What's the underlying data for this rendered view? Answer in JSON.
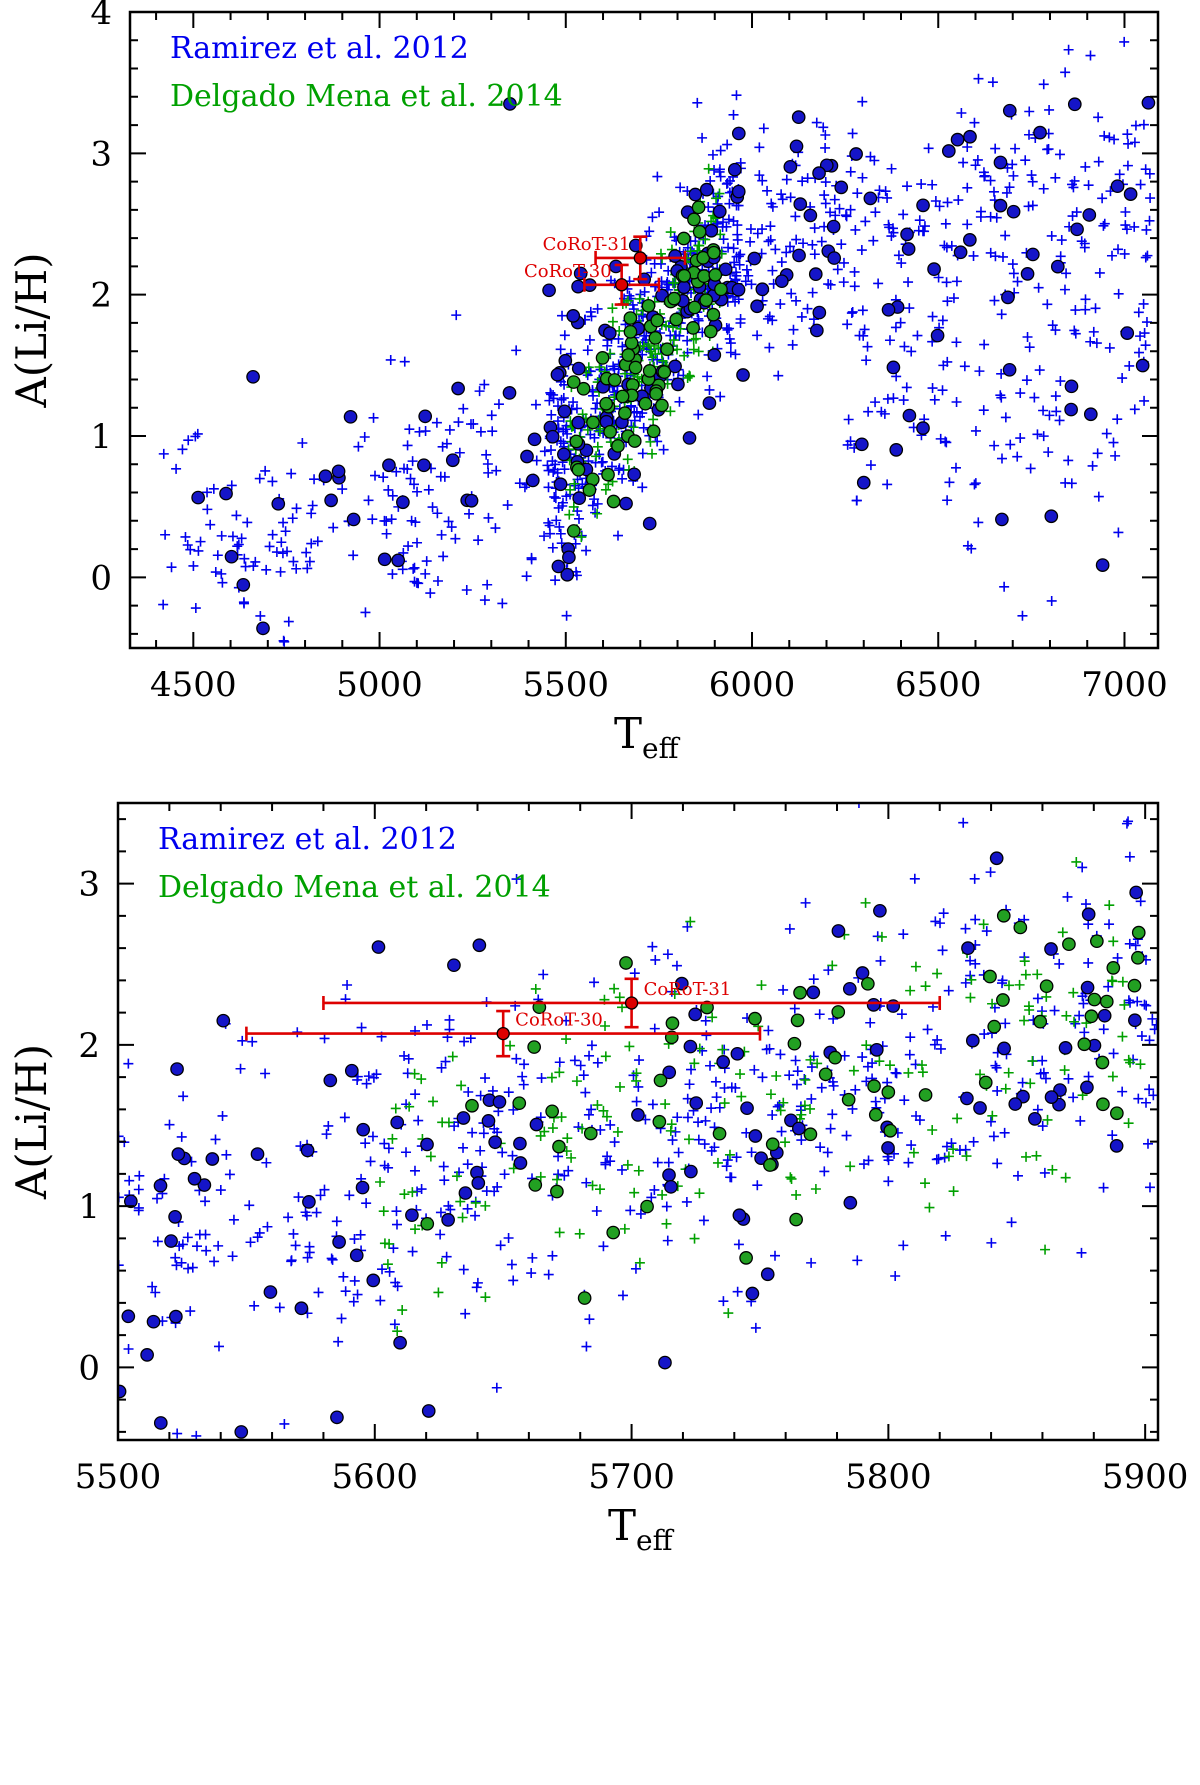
{
  "colors": {
    "ramirez": "#0000ee",
    "ramirez_fill": "#1515c8",
    "delgado": "#00a000",
    "delgado_fill": "#22a022",
    "corot": "#dd0000",
    "axes": "#000000"
  },
  "chart_data": [
    {
      "id": "top",
      "type": "scatter",
      "title": "",
      "xlabel": "T",
      "xlabel_sub": "eff",
      "ylabel": "A(Li/H)",
      "xlim": [
        4330,
        7090
      ],
      "ylim": [
        -0.5,
        4.0
      ],
      "xticks": [
        4500,
        5000,
        5500,
        6000,
        6500,
        7000
      ],
      "xtick_labels": [
        "4500",
        "5000",
        "5500",
        "6000",
        "6500",
        "7000"
      ],
      "yticks": [
        0,
        1,
        2,
        3,
        4
      ],
      "ytick_labels": [
        "0",
        "1",
        "2",
        "3",
        "4"
      ],
      "xminor": 100,
      "yminor": 0.2,
      "legend": [
        "Ramirez et al. 2012",
        "Delgado Mena et al. 2014"
      ],
      "legend_position": "top-left",
      "seed": 12345,
      "n_ramirez_plus": 1050,
      "n_ramirez_circle": 170,
      "n_delgado_plus": 190,
      "n_delgado_circle": 70,
      "highlight": [
        {
          "name": "CoRoT-31",
          "teff": 5700,
          "teff_err": 120,
          "ali": 2.26,
          "ali_err": 0.15,
          "label_side": "left"
        },
        {
          "name": "CoRoT-30",
          "teff": 5650,
          "teff_err": 100,
          "ali": 2.07,
          "ali_err": 0.14,
          "label_side": "left"
        }
      ],
      "ramirez_circle_anchors": [
        {
          "teff": 5350,
          "ali": 3.35
        },
        {
          "teff": 4890,
          "ali": 0.75
        },
        {
          "teff": 5540,
          "ali": 2.15
        },
        {
          "teff": 5520,
          "ali": 1.85
        },
        {
          "teff": 6300,
          "ali": 0.67
        },
        {
          "teff": 6560,
          "ali": 2.3
        },
        {
          "teff": 6180,
          "ali": 2.86
        },
        {
          "teff": 5050,
          "ali": 0.12
        }
      ]
    },
    {
      "id": "bottom",
      "type": "scatter",
      "title": "",
      "xlabel": "T",
      "xlabel_sub": "eff",
      "ylabel": "A(Li/H)",
      "xlim": [
        5500,
        5905
      ],
      "ylim": [
        -0.45,
        3.5
      ],
      "xticks": [
        5500,
        5600,
        5700,
        5800,
        5900
      ],
      "xtick_labels": [
        "5500",
        "5600",
        "5700",
        "5800",
        "5900"
      ],
      "yticks": [
        0,
        1,
        2,
        3
      ],
      "ytick_labels": [
        "0",
        "1",
        "2",
        "3"
      ],
      "xminor": 20,
      "yminor": 0.2,
      "legend": [
        "Ramirez et al. 2012",
        "Delgado Mena et al. 2014"
      ],
      "legend_position": "top-left",
      "seed": 67890,
      "n_ramirez_plus": 560,
      "n_ramirez_circle": 100,
      "n_delgado_plus": 190,
      "n_delgado_circle": 60,
      "highlight": [
        {
          "name": "CoRoT-31",
          "teff": 5700,
          "teff_err": 120,
          "ali": 2.26,
          "ali_err": 0.15,
          "label_side": "right"
        },
        {
          "name": "CoRoT-30",
          "teff": 5650,
          "teff_err": 100,
          "ali": 2.07,
          "ali_err": 0.14,
          "label_side": "right"
        }
      ],
      "ramirez_circle_anchors": [
        {
          "teff": 5541,
          "ali": 2.15
        },
        {
          "teff": 5523,
          "ali": 1.85
        },
        {
          "teff": 5548,
          "ali": -0.4
        },
        {
          "teff": 5621,
          "ali": -0.27
        },
        {
          "teff": 5713,
          "ali": 0.03
        },
        {
          "teff": 5878,
          "ali": 2.81
        },
        {
          "teff": 5831,
          "ali": 2.6
        },
        {
          "teff": 5505,
          "ali": 1.03
        }
      ]
    }
  ]
}
